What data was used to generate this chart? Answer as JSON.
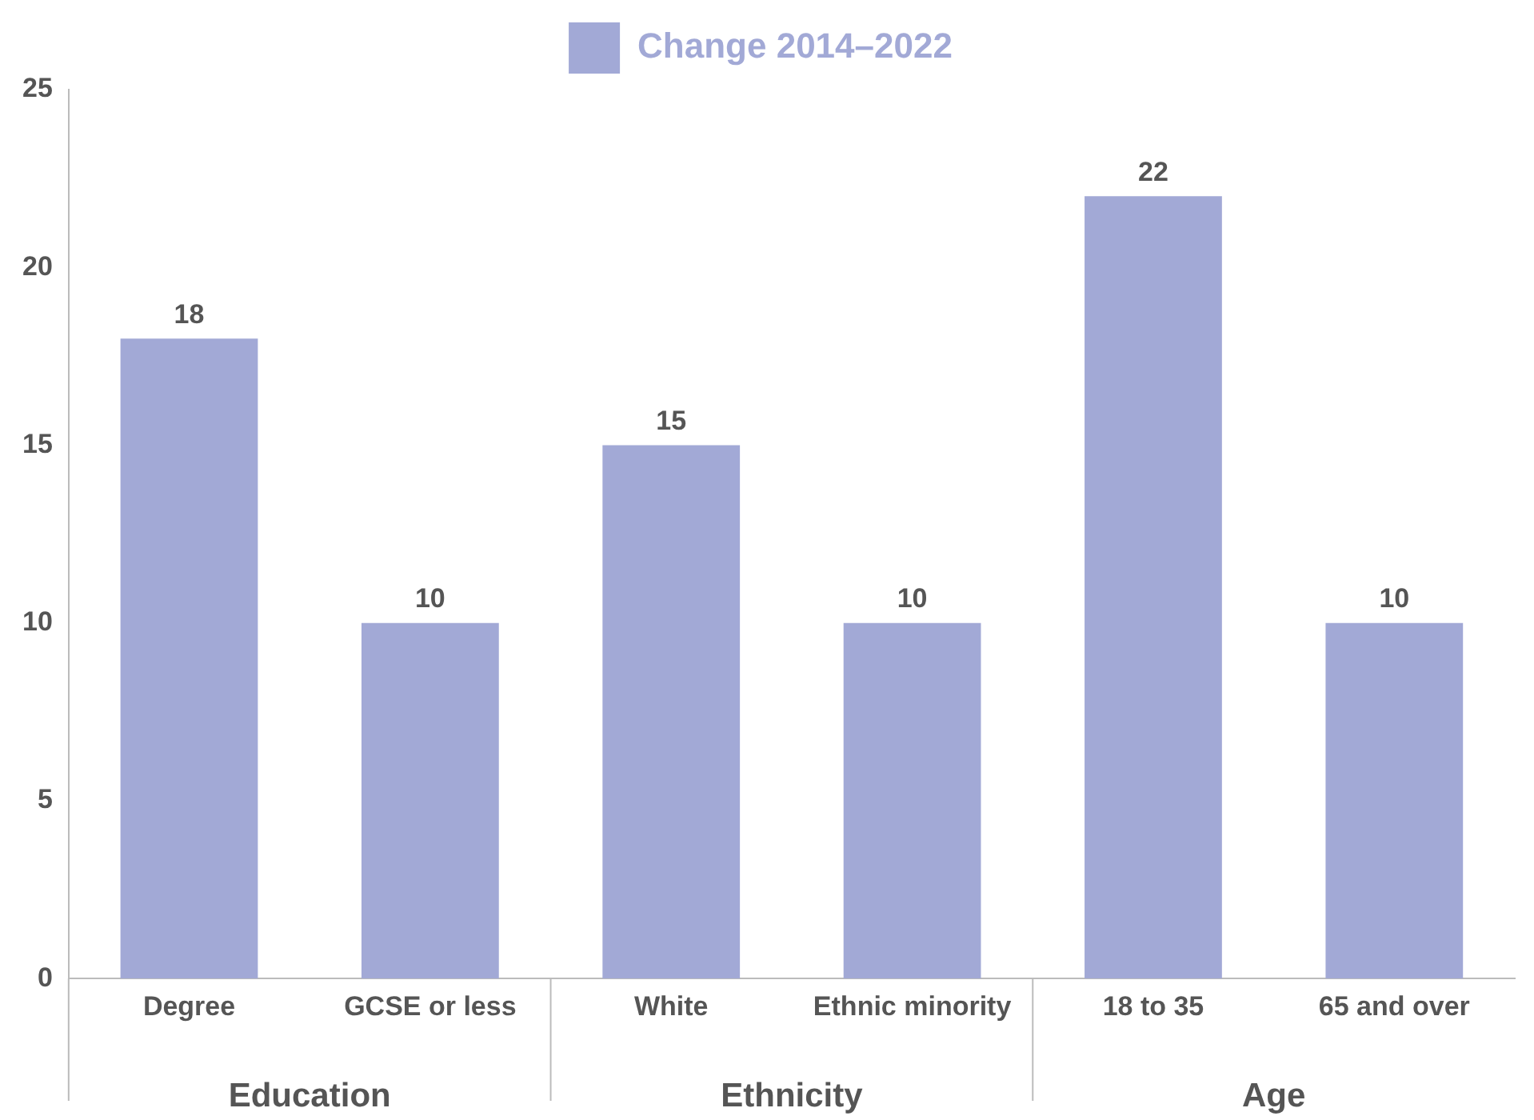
{
  "chart_data": {
    "type": "bar",
    "categories": [
      "Degree",
      "GCSE or less",
      "White",
      "Ethnic minority",
      "18 to 35",
      "65 and over"
    ],
    "series": [
      {
        "name": "Change 2014–2022",
        "color": "#a2a9d6",
        "values": [
          18,
          10,
          15,
          10,
          22,
          10
        ]
      }
    ],
    "ylim": [
      0,
      25
    ],
    "yticks": [
      0,
      5,
      10,
      15,
      20,
      25
    ],
    "grid": false,
    "legend": "top",
    "data_labels": true,
    "annotations": [
      "Education",
      "Ethnicity",
      "Age"
    ]
  }
}
